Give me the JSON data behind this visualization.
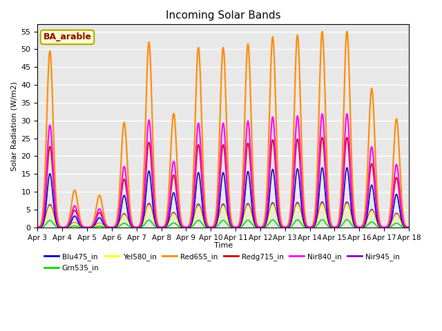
{
  "title": "Incoming Solar Bands",
  "xlabel": "Time",
  "ylabel": "Solar Radiation (W/m2)",
  "annotation": "BA_arable",
  "ylim": [
    0,
    57
  ],
  "yticks": [
    0,
    5,
    10,
    15,
    20,
    25,
    30,
    35,
    40,
    45,
    50,
    55
  ],
  "date_labels": [
    "Apr 3",
    "Apr 4",
    "Apr 5",
    "Apr 6",
    "Apr 7",
    "Apr 8",
    "Apr 9",
    "Apr 10",
    "Apr 11",
    "Apr 12",
    "Apr 13",
    "Apr 14",
    "Apr 15",
    "Apr 16",
    "Apr 17",
    "Apr 18"
  ],
  "series_order": [
    "Nir945_in",
    "Grn535_in",
    "Yel580_in",
    "Red655_in",
    "Redg715_in",
    "Blu475_in",
    "Nir840_in"
  ],
  "series": {
    "Blu475_in": {
      "color": "#0000cc",
      "lw": 1.2
    },
    "Grn535_in": {
      "color": "#00dd00",
      "lw": 1.2
    },
    "Yel580_in": {
      "color": "#ffff00",
      "lw": 1.2
    },
    "Red655_in": {
      "color": "#ff8800",
      "lw": 1.5
    },
    "Redg715_in": {
      "color": "#cc0000",
      "lw": 1.2
    },
    "Nir840_in": {
      "color": "#ff00ff",
      "lw": 1.5
    },
    "Nir945_in": {
      "color": "#8800bb",
      "lw": 1.2
    }
  },
  "background_color": "#e8e8e8",
  "peak_ratios": {
    "Blu475_in": 0.305,
    "Grn535_in": 0.04,
    "Yel580_in": 0.12,
    "Red655_in": 1.0,
    "Redg715_in": 0.46,
    "Nir840_in": 0.58,
    "Nir945_in": 0.13
  },
  "daily_peaks_red": [
    49.5,
    10.5,
    9.0,
    29.5,
    52.0,
    32.0,
    50.5,
    50.5,
    51.5,
    53.5,
    54.0,
    55.0,
    55.0,
    39.0,
    30.5
  ],
  "sigma": 0.13,
  "n_days": 15,
  "pts_per_day": 240
}
